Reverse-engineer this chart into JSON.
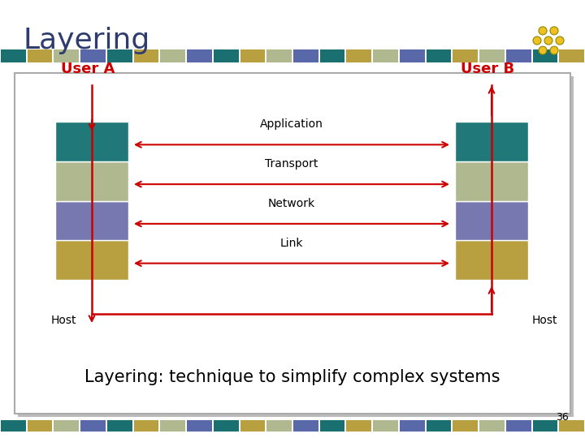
{
  "title": "Layering",
  "title_color": "#2E3C6E",
  "title_fontsize": 26,
  "slide_bg": "#FFFFFF",
  "outer_bg": "#DDDDDD",
  "footer_text": "Layering: technique to simplify complex systems",
  "footer_fontsize": 15,
  "page_number": "36",
  "user_a_label": "User A",
  "user_b_label": "User B",
  "host_label": "Host",
  "layer_colors": [
    "#B8A040",
    "#7878B0",
    "#B0B890",
    "#207878"
  ],
  "layer_labels": [
    "Application",
    "Transport",
    "Network",
    "Link"
  ],
  "arrow_color": "#CC0000",
  "label_color": "#CC0000",
  "stripe_colors_cycle": [
    "#1A7070",
    "#B8A040",
    "#B0B890",
    "#5868A8"
  ],
  "n_stripes": 22,
  "content_text_color": "#000000"
}
